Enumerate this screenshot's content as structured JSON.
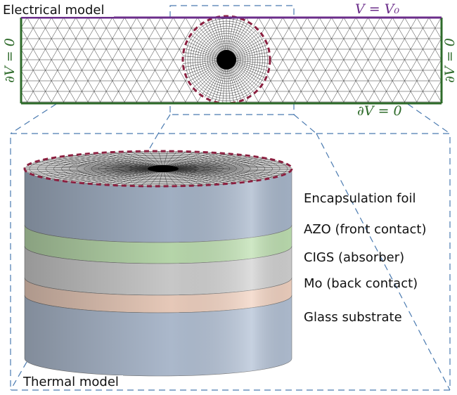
{
  "top_panel": {
    "title": "Electrical model",
    "top_boundary": "V = V₀",
    "left_boundary": "∂V = 0",
    "right_boundary": "∂V = 0",
    "bottom_boundary": "∂V = 0"
  },
  "bottom_panel": {
    "title": "Thermal model",
    "layers": [
      "Encapsulation foil",
      "AZO (front contact)",
      "CIGS (absorber)",
      "Mo (back contact)",
      "Glass substrate"
    ]
  }
}
